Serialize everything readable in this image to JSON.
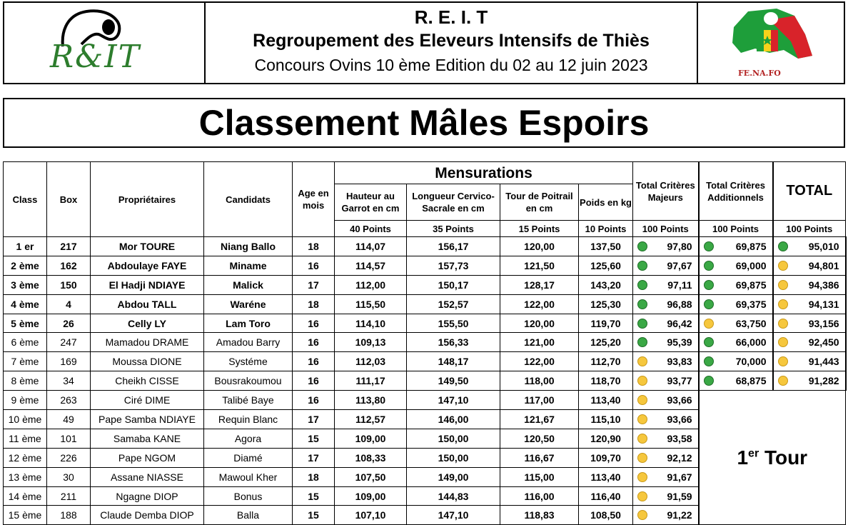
{
  "header": {
    "abbr": "R. E. I. T",
    "full_name": "Regroupement des Eleveurs Intensifs de Thiès",
    "subtitle": "Concours Ovins 10 ème Edition du 02 au 12 juin 2023",
    "logo_left_text": "R&IT",
    "logo_right_text": "FE.NA.FO"
  },
  "title": "Classement Mâles Espoirs",
  "columns": {
    "class": "Class",
    "box": "Box",
    "owners": "Propriétaires",
    "candidates": "Candidats",
    "age": "Age en mois",
    "mensurations": "Mensurations",
    "height": "Hauteur au Garrot en cm",
    "length": "Longueur Cervico-Sacrale en cm",
    "chest": "Tour de Poitrail en cm",
    "weight": "Poids en kg",
    "major": "Total Critères Majeurs",
    "additional": "Total Critères Additionnels",
    "total": "TOTAL"
  },
  "points": {
    "height": "40 Points",
    "length": "35 Points",
    "chest": "15 Points",
    "weight": "10 Points",
    "major": "100 Points",
    "additional": "100 Points",
    "total": "100 Points"
  },
  "colors": {
    "green": "#3aa845",
    "yellow": "#f6c73d"
  },
  "rows": [
    {
      "rank": "1 er",
      "box": "217",
      "owner": "Mor TOURE",
      "candidate": "Niang Ballo",
      "age": "18",
      "height": "114,07",
      "length": "156,17",
      "chest": "120,00",
      "weight": "137,50",
      "major": "97,80",
      "major_dot": "green",
      "additional": "69,875",
      "add_dot": "green",
      "total": "95,010",
      "total_dot": "green",
      "bold": true
    },
    {
      "rank": "2 ème",
      "box": "162",
      "owner": "Abdoulaye FAYE",
      "candidate": "Miname",
      "age": "16",
      "height": "114,57",
      "length": "157,73",
      "chest": "121,50",
      "weight": "125,60",
      "major": "97,67",
      "major_dot": "green",
      "additional": "69,000",
      "add_dot": "green",
      "total": "94,801",
      "total_dot": "yellow",
      "bold": true
    },
    {
      "rank": "3 ème",
      "box": "150",
      "owner": "El Hadji NDIAYE",
      "candidate": "Malick",
      "age": "17",
      "height": "112,00",
      "length": "150,17",
      "chest": "128,17",
      "weight": "143,20",
      "major": "97,11",
      "major_dot": "green",
      "additional": "69,875",
      "add_dot": "green",
      "total": "94,386",
      "total_dot": "yellow",
      "bold": true
    },
    {
      "rank": "4 ème",
      "box": "4",
      "owner": "Abdou TALL",
      "candidate": "Waréne",
      "age": "18",
      "height": "115,50",
      "length": "152,57",
      "chest": "122,00",
      "weight": "125,30",
      "major": "96,88",
      "major_dot": "green",
      "additional": "69,375",
      "add_dot": "green",
      "total": "94,131",
      "total_dot": "yellow",
      "bold": true
    },
    {
      "rank": "5 ème",
      "box": "26",
      "owner": "Celly LY",
      "candidate": "Lam Toro",
      "age": "16",
      "height": "114,10",
      "length": "155,50",
      "chest": "120,00",
      "weight": "119,70",
      "major": "96,42",
      "major_dot": "green",
      "additional": "63,750",
      "add_dot": "yellow",
      "total": "93,156",
      "total_dot": "yellow",
      "bold": true
    },
    {
      "rank": "6 ème",
      "box": "247",
      "owner": "Mamadou DRAME",
      "candidate": "Amadou Barry",
      "age": "16",
      "height": "109,13",
      "length": "156,33",
      "chest": "121,00",
      "weight": "125,20",
      "major": "95,39",
      "major_dot": "green",
      "additional": "66,000",
      "add_dot": "green",
      "total": "92,450",
      "total_dot": "yellow",
      "bold": false
    },
    {
      "rank": "7 ème",
      "box": "169",
      "owner": "Moussa DIONE",
      "candidate": "Systéme",
      "age": "16",
      "height": "112,03",
      "length": "148,17",
      "chest": "122,00",
      "weight": "112,70",
      "major": "93,83",
      "major_dot": "yellow",
      "additional": "70,000",
      "add_dot": "green",
      "total": "91,443",
      "total_dot": "yellow",
      "bold": false
    },
    {
      "rank": "8 ème",
      "box": "34",
      "owner": "Cheikh CISSE",
      "candidate": "Bousrakoumou",
      "age": "16",
      "height": "111,17",
      "length": "149,50",
      "chest": "118,00",
      "weight": "118,70",
      "major": "93,77",
      "major_dot": "yellow",
      "additional": "68,875",
      "add_dot": "green",
      "total": "91,282",
      "total_dot": "yellow",
      "bold": false
    },
    {
      "rank": "9 ème",
      "box": "263",
      "owner": "Ciré DIME",
      "candidate": "Talibé Baye",
      "age": "16",
      "height": "113,80",
      "length": "147,10",
      "chest": "117,00",
      "weight": "113,40",
      "major": "93,66",
      "major_dot": "yellow",
      "bold": false
    },
    {
      "rank": "10 ème",
      "box": "49",
      "owner": "Pape Samba NDIAYE",
      "candidate": "Requin Blanc",
      "age": "17",
      "height": "112,57",
      "length": "146,00",
      "chest": "121,67",
      "weight": "115,10",
      "major": "93,66",
      "major_dot": "yellow",
      "bold": false
    },
    {
      "rank": "11 ème",
      "box": "101",
      "owner": "Samaba KANE",
      "candidate": "Agora",
      "age": "15",
      "height": "109,00",
      "length": "150,00",
      "chest": "120,50",
      "weight": "120,90",
      "major": "93,58",
      "major_dot": "yellow",
      "bold": false
    },
    {
      "rank": "12 ème",
      "box": "226",
      "owner": "Pape NGOM",
      "candidate": "Diamé",
      "age": "17",
      "height": "108,33",
      "length": "150,00",
      "chest": "116,67",
      "weight": "109,70",
      "major": "92,12",
      "major_dot": "yellow",
      "bold": false
    },
    {
      "rank": "13 ème",
      "box": "30",
      "owner": "Assane NIASSE",
      "candidate": "Mawoul Kher",
      "age": "18",
      "height": "107,50",
      "length": "149,00",
      "chest": "115,00",
      "weight": "113,40",
      "major": "91,67",
      "major_dot": "yellow",
      "bold": false
    },
    {
      "rank": "14 ème",
      "box": "211",
      "owner": "Ngagne DIOP",
      "candidate": "Bonus",
      "age": "15",
      "height": "109,00",
      "length": "144,83",
      "chest": "116,00",
      "weight": "116,40",
      "major": "91,59",
      "major_dot": "yellow",
      "bold": false
    },
    {
      "rank": "15 ème",
      "box": "188",
      "owner": "Claude Demba DIOP",
      "candidate": "Balla",
      "age": "15",
      "height": "107,10",
      "length": "147,10",
      "chest": "118,83",
      "weight": "108,50",
      "major": "91,22",
      "major_dot": "yellow",
      "bold": false
    }
  ],
  "tour": {
    "number": "1",
    "suffix": "er",
    "word": "Tour"
  }
}
